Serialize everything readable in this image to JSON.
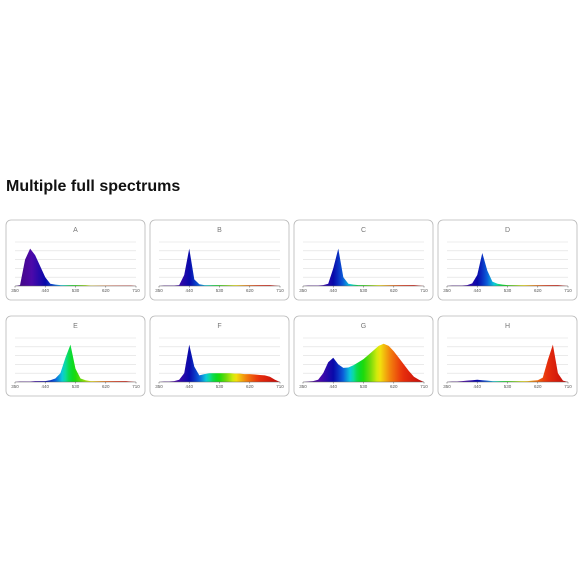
{
  "title": "Multiple full spectrums",
  "chart_data": [
    {
      "type": "area",
      "title": "A",
      "x": [
        350,
        365,
        380,
        395,
        410,
        425,
        440,
        455,
        470,
        485,
        500,
        515,
        530,
        545,
        560,
        575,
        590,
        605,
        620,
        635,
        650,
        665,
        680,
        695,
        710
      ],
      "values": [
        0,
        0.02,
        0.6,
        0.85,
        0.7,
        0.45,
        0.2,
        0.05,
        0.03,
        0.02,
        0.02,
        0.02,
        0.02,
        0.02,
        0.02,
        0.01,
        0.01,
        0.01,
        0.01,
        0.01,
        0.01,
        0.01,
        0.01,
        0.01,
        0
      ],
      "xlim": [
        350,
        710
      ],
      "xticks": [
        350,
        440,
        530,
        620,
        710
      ],
      "ylim": [
        0,
        1
      ],
      "yticks": [
        0.2,
        0.4,
        0.6,
        0.8,
        1
      ],
      "grid": true
    },
    {
      "type": "area",
      "title": "B",
      "x": [
        350,
        365,
        380,
        395,
        410,
        425,
        440,
        455,
        470,
        485,
        500,
        515,
        530,
        545,
        560,
        575,
        590,
        605,
        620,
        635,
        650,
        665,
        680,
        695,
        710
      ],
      "values": [
        0,
        0.01,
        0.01,
        0.01,
        0.02,
        0.25,
        0.85,
        0.15,
        0.04,
        0.02,
        0.02,
        0.02,
        0.02,
        0.02,
        0.02,
        0.02,
        0.02,
        0.02,
        0.02,
        0.02,
        0.02,
        0.02,
        0.02,
        0.01,
        0
      ],
      "xlim": [
        350,
        710
      ],
      "xticks": [
        350,
        440,
        530,
        620,
        710
      ],
      "ylim": [
        0,
        1
      ],
      "yticks": [
        0.2,
        0.4,
        0.6,
        0.8,
        1
      ],
      "grid": true
    },
    {
      "type": "area",
      "title": "C",
      "x": [
        350,
        365,
        380,
        395,
        410,
        425,
        440,
        455,
        470,
        485,
        500,
        515,
        530,
        545,
        560,
        575,
        590,
        605,
        620,
        635,
        650,
        665,
        680,
        695,
        710
      ],
      "values": [
        0,
        0.01,
        0.01,
        0.01,
        0.02,
        0.05,
        0.4,
        0.85,
        0.2,
        0.05,
        0.03,
        0.02,
        0.02,
        0.02,
        0.02,
        0.02,
        0.02,
        0.02,
        0.02,
        0.02,
        0.02,
        0.02,
        0.02,
        0.01,
        0
      ],
      "xlim": [
        350,
        710
      ],
      "xticks": [
        350,
        440,
        530,
        620,
        710
      ],
      "ylim": [
        0,
        1
      ],
      "yticks": [
        0.2,
        0.4,
        0.6,
        0.8,
        1
      ],
      "grid": true
    },
    {
      "type": "area",
      "title": "D",
      "x": [
        350,
        365,
        380,
        395,
        410,
        425,
        440,
        455,
        470,
        485,
        500,
        515,
        530,
        545,
        560,
        575,
        590,
        605,
        620,
        635,
        650,
        665,
        680,
        695,
        710
      ],
      "values": [
        0,
        0.01,
        0.01,
        0.01,
        0.02,
        0.06,
        0.25,
        0.75,
        0.35,
        0.1,
        0.05,
        0.03,
        0.02,
        0.02,
        0.02,
        0.02,
        0.02,
        0.02,
        0.02,
        0.02,
        0.02,
        0.02,
        0.02,
        0.01,
        0
      ],
      "xlim": [
        350,
        710
      ],
      "xticks": [
        350,
        440,
        530,
        620,
        710
      ],
      "ylim": [
        0,
        1
      ],
      "yticks": [
        0.2,
        0.4,
        0.6,
        0.8,
        1
      ],
      "grid": true
    },
    {
      "type": "area",
      "title": "E",
      "x": [
        350,
        365,
        380,
        395,
        410,
        425,
        440,
        455,
        470,
        485,
        500,
        515,
        530,
        545,
        560,
        575,
        590,
        605,
        620,
        635,
        650,
        665,
        680,
        695,
        710
      ],
      "values": [
        0,
        0.01,
        0.01,
        0.01,
        0.02,
        0.02,
        0.02,
        0.04,
        0.08,
        0.2,
        0.55,
        0.85,
        0.3,
        0.08,
        0.04,
        0.02,
        0.02,
        0.02,
        0.02,
        0.02,
        0.02,
        0.02,
        0.02,
        0.01,
        0
      ],
      "xlim": [
        350,
        710
      ],
      "xticks": [
        350,
        440,
        530,
        620,
        710
      ],
      "ylim": [
        0,
        1
      ],
      "yticks": [
        0.2,
        0.4,
        0.6,
        0.8,
        1
      ],
      "grid": true
    },
    {
      "type": "area",
      "title": "F",
      "x": [
        350,
        365,
        380,
        395,
        410,
        425,
        440,
        455,
        470,
        485,
        500,
        515,
        530,
        545,
        560,
        575,
        590,
        605,
        620,
        635,
        650,
        665,
        680,
        695,
        710
      ],
      "values": [
        0,
        0.01,
        0.01,
        0.02,
        0.05,
        0.2,
        0.85,
        0.35,
        0.15,
        0.18,
        0.2,
        0.2,
        0.2,
        0.2,
        0.2,
        0.19,
        0.19,
        0.18,
        0.18,
        0.17,
        0.16,
        0.15,
        0.12,
        0.05,
        0
      ],
      "xlim": [
        350,
        710
      ],
      "xticks": [
        350,
        440,
        530,
        620,
        710
      ],
      "ylim": [
        0,
        1
      ],
      "yticks": [
        0.2,
        0.4,
        0.6,
        0.8,
        1
      ],
      "grid": true
    },
    {
      "type": "area",
      "title": "G",
      "x": [
        350,
        365,
        380,
        395,
        410,
        425,
        440,
        455,
        470,
        485,
        500,
        515,
        530,
        545,
        560,
        575,
        590,
        605,
        620,
        635,
        650,
        665,
        680,
        695,
        710
      ],
      "values": [
        0,
        0.01,
        0.02,
        0.05,
        0.2,
        0.45,
        0.55,
        0.4,
        0.32,
        0.33,
        0.38,
        0.45,
        0.52,
        0.62,
        0.72,
        0.82,
        0.87,
        0.82,
        0.7,
        0.55,
        0.4,
        0.25,
        0.12,
        0.05,
        0
      ],
      "xlim": [
        350,
        710
      ],
      "xticks": [
        350,
        440,
        530,
        620,
        710
      ],
      "ylim": [
        0,
        1
      ],
      "yticks": [
        0.2,
        0.4,
        0.6,
        0.8,
        1
      ],
      "grid": true
    },
    {
      "type": "area",
      "title": "H",
      "x": [
        350,
        365,
        380,
        395,
        410,
        425,
        440,
        455,
        470,
        485,
        500,
        515,
        530,
        545,
        560,
        575,
        590,
        605,
        620,
        635,
        650,
        665,
        680,
        695,
        710
      ],
      "values": [
        0,
        0.01,
        0.01,
        0.02,
        0.03,
        0.04,
        0.05,
        0.04,
        0.03,
        0.02,
        0.02,
        0.02,
        0.02,
        0.02,
        0.02,
        0.02,
        0.02,
        0.03,
        0.04,
        0.1,
        0.5,
        0.85,
        0.2,
        0.03,
        0
      ],
      "xlim": [
        350,
        710
      ],
      "xticks": [
        350,
        440,
        530,
        620,
        710
      ],
      "ylim": [
        0,
        1
      ],
      "yticks": [
        0.2,
        0.4,
        0.6,
        0.8,
        1
      ],
      "grid": true
    }
  ]
}
